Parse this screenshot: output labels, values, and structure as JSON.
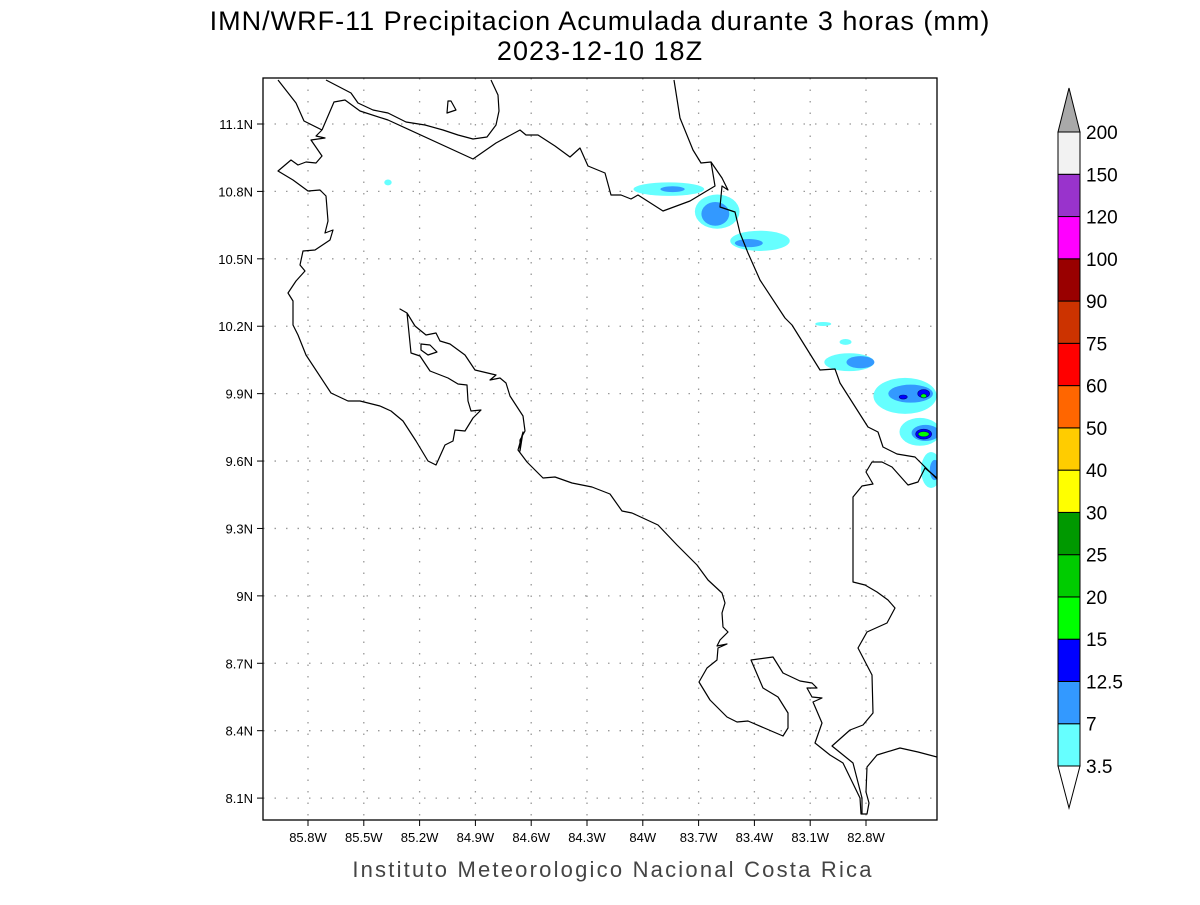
{
  "title": {
    "line1": "IMN/WRF-11 Precipitacion Acumulada durante 3 horas (mm)",
    "line2": "2023-12-10 18Z"
  },
  "footer": "Instituto Meteorologico Nacional Costa Rica",
  "chart_data": {
    "type": "heatmap",
    "title": "IMN/WRF-11 Precipitacion Acumulada durante 3 horas (mm) 2023-12-10 18Z",
    "units": "mm",
    "lon_range_W": [
      86.04,
      82.42
    ],
    "lat_range_N": [
      8.0,
      11.3
    ],
    "grid": true,
    "x_ticks": [
      {
        "value": 85.8,
        "label": "85.8W"
      },
      {
        "value": 85.5,
        "label": "85.5W"
      },
      {
        "value": 85.2,
        "label": "85.2W"
      },
      {
        "value": 84.9,
        "label": "84.9W"
      },
      {
        "value": 84.6,
        "label": "84.6W"
      },
      {
        "value": 84.3,
        "label": "84.3W"
      },
      {
        "value": 84.0,
        "label": "84W"
      },
      {
        "value": 83.7,
        "label": "83.7W"
      },
      {
        "value": 83.4,
        "label": "83.4W"
      },
      {
        "value": 83.1,
        "label": "83.1W"
      },
      {
        "value": 82.8,
        "label": "82.8W"
      }
    ],
    "y_ticks": [
      {
        "value": 11.1,
        "label": "11.1N"
      },
      {
        "value": 10.8,
        "label": "10.8N"
      },
      {
        "value": 10.5,
        "label": "10.5N"
      },
      {
        "value": 10.2,
        "label": "10.2N"
      },
      {
        "value": 9.9,
        "label": "9.9N"
      },
      {
        "value": 9.6,
        "label": "9.6N"
      },
      {
        "value": 9.3,
        "label": "9.3N"
      },
      {
        "value": 9.0,
        "label": "9N"
      },
      {
        "value": 8.7,
        "label": "8.7N"
      },
      {
        "value": 8.4,
        "label": "8.4N"
      },
      {
        "value": 8.1,
        "label": "8.1N"
      }
    ],
    "colorbar": {
      "position": "right",
      "labels": [
        "3.5",
        "7",
        "12.5",
        "15",
        "20",
        "25",
        "30",
        "40",
        "50",
        "60",
        "75",
        "90",
        "100",
        "120",
        "150",
        "200"
      ],
      "colors": [
        "#66FFFF",
        "#3399FF",
        "#0000FF",
        "#00FF00",
        "#00CC00",
        "#009900",
        "#FFFF00",
        "#FFCC00",
        "#FF6600",
        "#FF0000",
        "#CC3300",
        "#990000",
        "#FF00FF",
        "#9933CC",
        "#F2F2F2"
      ],
      "below_color": "#FFFFFF",
      "above_color": "#A9A9A9"
    },
    "precip_cells": [
      {
        "lonW": 83.86,
        "lat": 10.81,
        "rlon": 0.19,
        "rlat": 0.03,
        "level": 0
      },
      {
        "lonW": 83.84,
        "lat": 10.81,
        "rlon": 0.065,
        "rlat": 0.013,
        "level": 1
      },
      {
        "lonW": 83.6,
        "lat": 10.71,
        "rlon": 0.12,
        "rlat": 0.076,
        "level": 0
      },
      {
        "lonW": 83.61,
        "lat": 10.7,
        "rlon": 0.075,
        "rlat": 0.053,
        "level": 1
      },
      {
        "lonW": 83.37,
        "lat": 10.58,
        "rlon": 0.16,
        "rlat": 0.045,
        "level": 0
      },
      {
        "lonW": 83.43,
        "lat": 10.57,
        "rlon": 0.075,
        "rlat": 0.018,
        "level": 1
      },
      {
        "lonW": 85.37,
        "lat": 10.84,
        "rlon": 0.02,
        "rlat": 0.013,
        "level": 0
      },
      {
        "lonW": 83.03,
        "lat": 10.21,
        "rlon": 0.043,
        "rlat": 0.009,
        "level": 0
      },
      {
        "lonW": 82.89,
        "lat": 10.04,
        "rlon": 0.134,
        "rlat": 0.04,
        "level": 0
      },
      {
        "lonW": 82.91,
        "lat": 10.13,
        "rlon": 0.032,
        "rlat": 0.013,
        "level": 0
      },
      {
        "lonW": 82.83,
        "lat": 10.04,
        "rlon": 0.075,
        "rlat": 0.027,
        "level": 1
      },
      {
        "lonW": 82.59,
        "lat": 9.89,
        "rlon": 0.17,
        "rlat": 0.08,
        "level": 0
      },
      {
        "lonW": 82.56,
        "lat": 9.9,
        "rlon": 0.12,
        "rlat": 0.04,
        "level": 1
      },
      {
        "lonW": 82.49,
        "lat": 9.9,
        "rlon": 0.032,
        "rlat": 0.018,
        "level": 2
      },
      {
        "lonW": 82.6,
        "lat": 9.885,
        "rlon": 0.022,
        "rlat": 0.009,
        "level": 2
      },
      {
        "lonW": 82.49,
        "lat": 9.89,
        "rlon": 0.016,
        "rlat": 0.009,
        "level": 3
      },
      {
        "lonW": 82.51,
        "lat": 9.73,
        "rlon": 0.11,
        "rlat": 0.062,
        "level": 0
      },
      {
        "lonW": 82.48,
        "lat": 9.725,
        "rlon": 0.075,
        "rlat": 0.036,
        "level": 1
      },
      {
        "lonW": 82.49,
        "lat": 9.72,
        "rlon": 0.043,
        "rlat": 0.022,
        "level": 2
      },
      {
        "lonW": 82.49,
        "lat": 9.72,
        "rlon": 0.03,
        "rlat": 0.012,
        "level": 3
      },
      {
        "lonW": 82.45,
        "lat": 9.56,
        "rlon": 0.054,
        "rlat": 0.08,
        "level": 0
      },
      {
        "lonW": 82.43,
        "lat": 9.56,
        "rlon": 0.027,
        "rlat": 0.045,
        "level": 1
      }
    ]
  }
}
